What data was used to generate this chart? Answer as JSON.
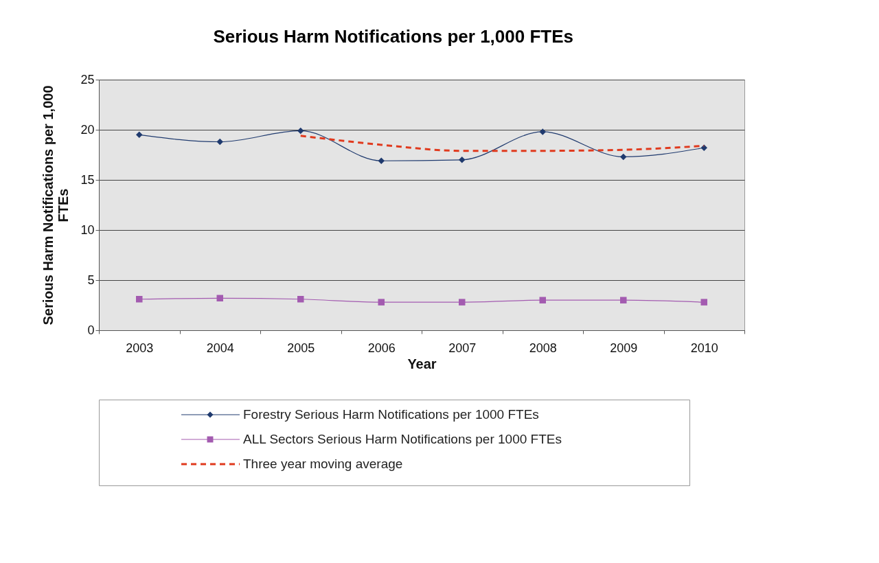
{
  "chart_data": {
    "type": "line",
    "title": "Serious Harm Notifications per 1,000 FTEs",
    "xlabel": "Year",
    "ylabel": "Serious Harm Notifications per 1,000 FTEs",
    "categories": [
      "2003",
      "2004",
      "2005",
      "2006",
      "2007",
      "2008",
      "2009",
      "2010"
    ],
    "series": [
      {
        "name": "Forestry Serious Harm Notifications per 1000 FTEs",
        "color": "#1f3a6e",
        "marker": "diamond",
        "line_style": "solid",
        "values": [
          19.5,
          18.8,
          19.9,
          16.9,
          17.0,
          19.8,
          17.3,
          18.2
        ]
      },
      {
        "name": "ALL Sectors Serious Harm Notifications per 1000 FTEs",
        "color": "#a35bb0",
        "marker": "square",
        "line_style": "solid",
        "values": [
          3.1,
          3.2,
          3.1,
          2.8,
          2.8,
          3.0,
          3.0,
          2.8
        ]
      },
      {
        "name": "Three year moving average",
        "color": "#e03a1e",
        "marker": "none",
        "line_style": "dashed",
        "values": [
          null,
          null,
          19.4,
          18.5,
          17.9,
          17.9,
          18.0,
          18.4
        ]
      }
    ],
    "ylim": [
      0,
      25
    ],
    "yticks": [
      0,
      5,
      10,
      15,
      20,
      25
    ],
    "grid": "y",
    "legend": "bottom"
  }
}
